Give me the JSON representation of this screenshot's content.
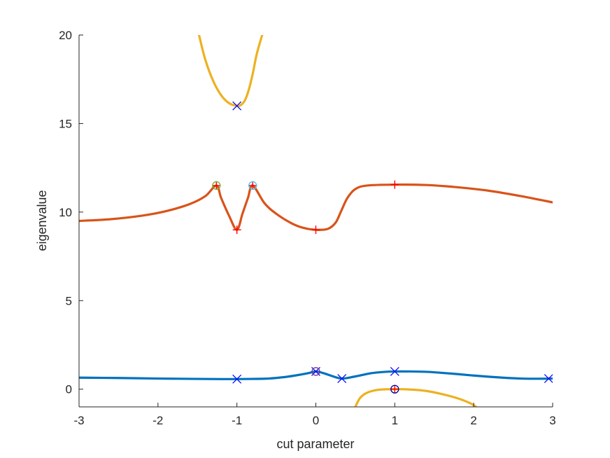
{
  "chart_data": {
    "type": "line",
    "title": "",
    "xlabel": "cut parameter",
    "ylabel": "eigenvalue",
    "xlim": [
      -3,
      3
    ],
    "ylim": [
      -1,
      20
    ],
    "xticks": [
      -3,
      -2,
      -1,
      0,
      1,
      2,
      3
    ],
    "yticks": [
      0,
      5,
      10,
      15,
      20
    ],
    "box": "left-bottom axes only",
    "grid": false,
    "legend": "none",
    "series": [
      {
        "color": "#0072BD",
        "points": [
          [
            -3,
            0.65
          ],
          [
            -2.5,
            0.63
          ],
          [
            -2,
            0.6
          ],
          [
            -1.5,
            0.58
          ],
          [
            -1.2,
            0.57
          ],
          [
            -1,
            0.57
          ],
          [
            -0.8,
            0.58
          ],
          [
            -0.6,
            0.6
          ],
          [
            -0.4,
            0.68
          ],
          [
            -0.25,
            0.78
          ],
          [
            -0.1,
            0.9
          ],
          [
            0,
            1.0
          ],
          [
            0.1,
            0.9
          ],
          [
            0.2,
            0.75
          ],
          [
            0.33,
            0.6
          ],
          [
            0.5,
            0.72
          ],
          [
            0.7,
            0.9
          ],
          [
            0.85,
            0.97
          ],
          [
            1,
            1.0
          ],
          [
            1.2,
            1.0
          ],
          [
            1.4,
            0.98
          ],
          [
            1.6,
            0.92
          ],
          [
            1.8,
            0.85
          ],
          [
            2,
            0.77
          ],
          [
            2.2,
            0.7
          ],
          [
            2.4,
            0.64
          ],
          [
            2.6,
            0.6
          ],
          [
            2.8,
            0.59
          ],
          [
            3,
            0.6
          ]
        ]
      },
      {
        "color": "#D95319",
        "points": [
          [
            -3,
            9.5
          ],
          [
            -2.6,
            9.6
          ],
          [
            -2.2,
            9.8
          ],
          [
            -1.9,
            10.05
          ],
          [
            -1.6,
            10.45
          ],
          [
            -1.4,
            10.9
          ],
          [
            -1.26,
            11.5
          ],
          [
            -1.2,
            10.8
          ],
          [
            -1.1,
            9.8
          ],
          [
            -1,
            9.0
          ],
          [
            -0.93,
            9.9
          ],
          [
            -0.86,
            10.8
          ],
          [
            -0.8,
            11.5
          ],
          [
            -0.65,
            10.5
          ],
          [
            -0.5,
            9.9
          ],
          [
            -0.3,
            9.35
          ],
          [
            -0.15,
            9.1
          ],
          [
            0,
            9.0
          ],
          [
            0.15,
            9.05
          ],
          [
            0.25,
            9.4
          ],
          [
            0.32,
            10.05
          ],
          [
            0.4,
            10.8
          ],
          [
            0.5,
            11.3
          ],
          [
            0.65,
            11.5
          ],
          [
            1,
            11.55
          ],
          [
            1.4,
            11.53
          ],
          [
            1.8,
            11.4
          ],
          [
            2.2,
            11.2
          ],
          [
            2.6,
            10.9
          ],
          [
            3,
            10.55
          ]
        ]
      },
      {
        "color": "#EDB120",
        "points": [
          [
            -1.48,
            20
          ],
          [
            -1.4,
            18.6
          ],
          [
            -1.3,
            17.4
          ],
          [
            -1.2,
            16.6
          ],
          [
            -1.1,
            16.15
          ],
          [
            -1,
            16.0
          ],
          [
            -0.95,
            16.05
          ],
          [
            -0.9,
            16.3
          ],
          [
            -0.85,
            16.9
          ],
          [
            -0.8,
            17.8
          ],
          [
            -0.75,
            18.9
          ],
          [
            -0.68,
            20
          ]
        ]
      },
      {
        "color": "#EDB120",
        "points": [
          [
            0.5,
            -1
          ],
          [
            0.56,
            -0.5
          ],
          [
            0.65,
            -0.2
          ],
          [
            0.8,
            -0.03
          ],
          [
            1,
            0.0
          ],
          [
            1.2,
            -0.02
          ],
          [
            1.4,
            -0.1
          ],
          [
            1.6,
            -0.28
          ],
          [
            1.8,
            -0.52
          ],
          [
            1.95,
            -0.78
          ],
          [
            2.03,
            -1
          ]
        ]
      }
    ],
    "markers": [
      {
        "symbol": "x",
        "color": "#0000FF",
        "points": [
          [
            -1,
            0.57
          ],
          [
            0,
            1.0
          ],
          [
            0.33,
            0.6
          ],
          [
            1,
            1.0
          ],
          [
            2.95,
            0.6
          ],
          [
            -1,
            16.0
          ]
        ]
      },
      {
        "symbol": "+",
        "color": "#FF0000",
        "points": [
          [
            -1,
            9.0
          ],
          [
            0,
            9.0
          ],
          [
            1,
            11.55
          ],
          [
            -1.26,
            11.5
          ],
          [
            -0.8,
            11.5
          ],
          [
            1,
            0.0
          ]
        ]
      },
      {
        "symbol": "o",
        "color": "#77AC30",
        "points": [
          [
            -1.26,
            11.5
          ]
        ]
      },
      {
        "symbol": "o",
        "color": "#4DBEEE",
        "points": [
          [
            -0.8,
            11.5
          ]
        ]
      },
      {
        "symbol": "o",
        "color": "#7E2F8E",
        "points": [
          [
            0,
            1.0
          ]
        ]
      },
      {
        "symbol": "o",
        "color": "#0000AA",
        "points": [
          [
            1,
            0.0
          ]
        ]
      }
    ]
  }
}
